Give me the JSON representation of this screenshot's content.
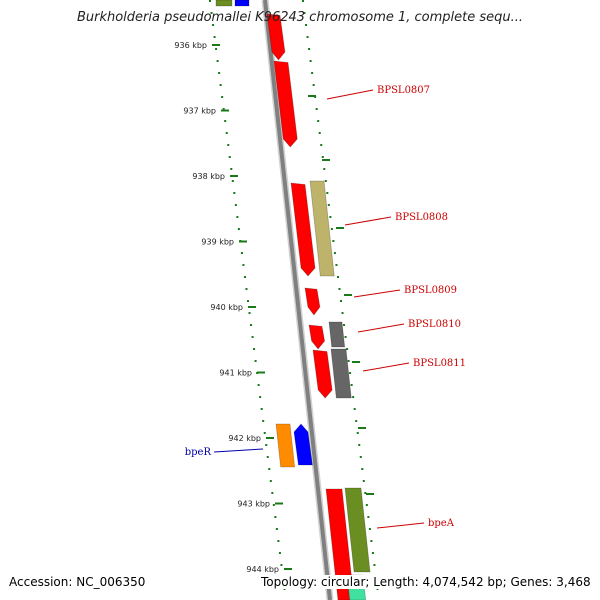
{
  "title": "Burkholderia pseudomallei K96243 chromosome 1, complete sequ...",
  "footer": {
    "accession": "Accession: NC_006350",
    "summary": "Topology: circular; Length: 4,074,542 bp; Genes: 3,468"
  },
  "ticks": [
    "936 kbp",
    "937 kbp",
    "938 kbp",
    "939 kbp",
    "940 kbp",
    "941 kbp",
    "942 kbp",
    "943 kbp",
    "944 kbp"
  ],
  "genes": [
    {
      "name": "BPSL0807",
      "color": "#cc0000"
    },
    {
      "name": "BPSL0808",
      "color": "#cc0000"
    },
    {
      "name": "BPSL0809",
      "color": "#cc0000"
    },
    {
      "name": "BPSL0810",
      "color": "#cc0000"
    },
    {
      "name": "BPSL0811",
      "color": "#cc0000"
    },
    {
      "name": "bpeR",
      "color": "#0000aa"
    },
    {
      "name": "bpeA",
      "color": "#cc0000"
    }
  ],
  "colors": {
    "backbone": "#808080",
    "backbone_light": "#d0d0d0",
    "tick": "#1a7a1a",
    "cds_red": "#ff0000",
    "olive": "#bdb36b",
    "gray": "#666666",
    "orange": "#ff8c00",
    "blue": "#0000ff",
    "dark_green": "#6b8e23",
    "green": "#3c8c3c",
    "teal": "#40e0a0"
  }
}
